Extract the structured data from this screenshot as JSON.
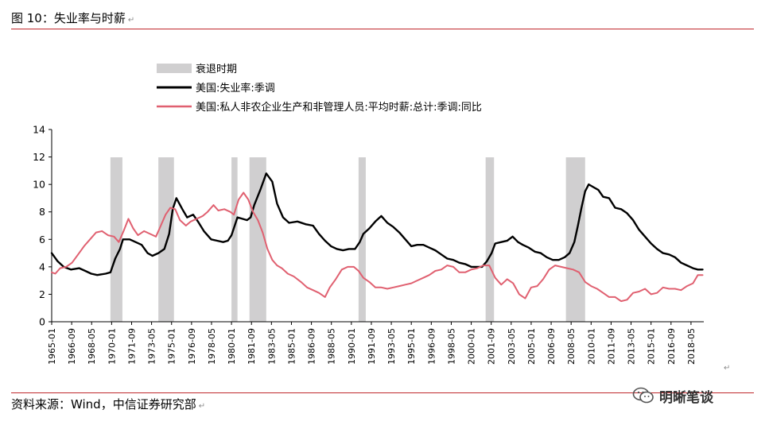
{
  "header": {
    "title": "图 10：失业率与时薪"
  },
  "footer": {
    "source": "资料来源：Wind，中信证券研究部"
  },
  "brand": {
    "text": "明晰笔谈",
    "icon": "wechat-icon"
  },
  "colors": {
    "unemployment": "#000000",
    "wage": "#e06070",
    "recession": "#d0cfd0",
    "rule": "#c0282d"
  },
  "chart_data": {
    "type": "line",
    "title": "",
    "xlabel": "",
    "ylabel": "",
    "ylim": [
      0,
      14
    ],
    "yticks": [
      0,
      2,
      4,
      6,
      8,
      10,
      12,
      14
    ],
    "xlim": [
      1965.0,
      2019.4
    ],
    "x_tick_labels": [
      "1965-01",
      "1966-09",
      "1968-05",
      "1970-01",
      "1971-09",
      "1973-05",
      "1975-01",
      "1976-09",
      "1978-05",
      "1980-01",
      "1981-09",
      "1983-05",
      "1985-01",
      "1986-09",
      "1988-05",
      "1990-01",
      "1991-09",
      "1993-05",
      "1995-01",
      "1996-09",
      "1998-05",
      "2000-01",
      "2001-09",
      "2003-05",
      "2005-01",
      "2006-09",
      "2008-05",
      "2010-01",
      "2011-09",
      "2013-05",
      "2015-01",
      "2016-09",
      "2018-05"
    ],
    "x_tick_values": [
      1965.0,
      1966.667,
      1968.333,
      1970.0,
      1971.667,
      1973.333,
      1975.0,
      1976.667,
      1978.333,
      1980.0,
      1981.667,
      1983.333,
      1985.0,
      1986.667,
      1988.333,
      1990.0,
      1991.667,
      1993.333,
      1995.0,
      1996.667,
      1998.333,
      2000.0,
      2001.667,
      2003.333,
      2005.0,
      2006.667,
      2008.333,
      2010.0,
      2011.667,
      2013.333,
      2015.0,
      2016.667,
      2018.333
    ],
    "grid": false,
    "legend_position": "top",
    "recession_label": "衰退时期",
    "recessions": [
      [
        1969.9,
        1970.9
      ],
      [
        1973.9,
        1975.2
      ],
      [
        1980.0,
        1980.5
      ],
      [
        1981.5,
        1982.9
      ],
      [
        1990.6,
        1991.2
      ],
      [
        2001.2,
        2001.9
      ],
      [
        2007.9,
        2009.5
      ]
    ],
    "series": [
      {
        "name": "美国:失业率:季调",
        "color": "#000000",
        "points": [
          [
            1965.0,
            5.0
          ],
          [
            1965.5,
            4.4
          ],
          [
            1966.0,
            4.0
          ],
          [
            1966.6,
            3.8
          ],
          [
            1967.3,
            3.9
          ],
          [
            1967.8,
            3.7
          ],
          [
            1968.3,
            3.5
          ],
          [
            1968.8,
            3.4
          ],
          [
            1969.5,
            3.5
          ],
          [
            1969.9,
            3.6
          ],
          [
            1970.3,
            4.6
          ],
          [
            1970.7,
            5.3
          ],
          [
            1970.95,
            6.0
          ],
          [
            1971.5,
            6.0
          ],
          [
            1972.0,
            5.8
          ],
          [
            1972.5,
            5.6
          ],
          [
            1973.0,
            5.0
          ],
          [
            1973.4,
            4.8
          ],
          [
            1973.9,
            5.0
          ],
          [
            1974.4,
            5.3
          ],
          [
            1974.8,
            6.4
          ],
          [
            1975.1,
            8.2
          ],
          [
            1975.4,
            9.0
          ],
          [
            1975.9,
            8.2
          ],
          [
            1976.3,
            7.6
          ],
          [
            1976.8,
            7.8
          ],
          [
            1977.2,
            7.3
          ],
          [
            1977.7,
            6.6
          ],
          [
            1978.3,
            6.0
          ],
          [
            1978.8,
            5.9
          ],
          [
            1979.3,
            5.8
          ],
          [
            1979.7,
            5.9
          ],
          [
            1980.0,
            6.3
          ],
          [
            1980.5,
            7.6
          ],
          [
            1980.9,
            7.5
          ],
          [
            1981.3,
            7.4
          ],
          [
            1981.6,
            7.6
          ],
          [
            1981.9,
            8.5
          ],
          [
            1982.4,
            9.6
          ],
          [
            1982.9,
            10.8
          ],
          [
            1983.4,
            10.2
          ],
          [
            1983.8,
            8.6
          ],
          [
            1984.3,
            7.6
          ],
          [
            1984.8,
            7.2
          ],
          [
            1985.5,
            7.3
          ],
          [
            1986.2,
            7.1
          ],
          [
            1986.8,
            7.0
          ],
          [
            1987.3,
            6.4
          ],
          [
            1987.8,
            5.9
          ],
          [
            1988.3,
            5.5
          ],
          [
            1988.8,
            5.3
          ],
          [
            1989.3,
            5.2
          ],
          [
            1989.8,
            5.3
          ],
          [
            1990.3,
            5.3
          ],
          [
            1990.7,
            5.8
          ],
          [
            1991.0,
            6.4
          ],
          [
            1991.5,
            6.8
          ],
          [
            1992.0,
            7.3
          ],
          [
            1992.5,
            7.7
          ],
          [
            1993.0,
            7.2
          ],
          [
            1993.5,
            6.9
          ],
          [
            1994.0,
            6.5
          ],
          [
            1994.5,
            6.0
          ],
          [
            1995.0,
            5.5
          ],
          [
            1995.5,
            5.6
          ],
          [
            1996.0,
            5.6
          ],
          [
            1996.5,
            5.4
          ],
          [
            1997.0,
            5.2
          ],
          [
            1997.5,
            4.9
          ],
          [
            1998.0,
            4.6
          ],
          [
            1998.5,
            4.5
          ],
          [
            1999.0,
            4.3
          ],
          [
            1999.5,
            4.2
          ],
          [
            2000.0,
            4.0
          ],
          [
            2000.5,
            4.0
          ],
          [
            2000.9,
            4.0
          ],
          [
            2001.3,
            4.4
          ],
          [
            2001.7,
            5.0
          ],
          [
            2002.0,
            5.7
          ],
          [
            2002.5,
            5.8
          ],
          [
            2003.0,
            5.9
          ],
          [
            2003.45,
            6.2
          ],
          [
            2003.9,
            5.8
          ],
          [
            2004.3,
            5.6
          ],
          [
            2004.8,
            5.4
          ],
          [
            2005.3,
            5.1
          ],
          [
            2005.8,
            5.0
          ],
          [
            2006.3,
            4.7
          ],
          [
            2006.8,
            4.5
          ],
          [
            2007.3,
            4.5
          ],
          [
            2007.8,
            4.7
          ],
          [
            2008.2,
            5.0
          ],
          [
            2008.6,
            5.8
          ],
          [
            2008.9,
            7.0
          ],
          [
            2009.2,
            8.3
          ],
          [
            2009.5,
            9.5
          ],
          [
            2009.8,
            10.0
          ],
          [
            2010.2,
            9.8
          ],
          [
            2010.6,
            9.6
          ],
          [
            2011.0,
            9.1
          ],
          [
            2011.5,
            9.0
          ],
          [
            2012.0,
            8.3
          ],
          [
            2012.5,
            8.2
          ],
          [
            2013.0,
            7.9
          ],
          [
            2013.5,
            7.4
          ],
          [
            2014.0,
            6.7
          ],
          [
            2014.5,
            6.2
          ],
          [
            2015.0,
            5.7
          ],
          [
            2015.5,
            5.3
          ],
          [
            2016.0,
            5.0
          ],
          [
            2016.5,
            4.9
          ],
          [
            2017.0,
            4.7
          ],
          [
            2017.5,
            4.3
          ],
          [
            2018.0,
            4.1
          ],
          [
            2018.5,
            3.9
          ],
          [
            2018.9,
            3.8
          ],
          [
            2019.3,
            3.8
          ]
        ]
      },
      {
        "name": "美国:私人非农企业生产和非管理人员:平均时薪:总计:季调:同比",
        "color": "#e06070",
        "points": [
          [
            1965.0,
            3.6
          ],
          [
            1965.3,
            3.5
          ],
          [
            1965.7,
            3.9
          ],
          [
            1966.2,
            4.0
          ],
          [
            1966.7,
            4.3
          ],
          [
            1967.2,
            4.9
          ],
          [
            1967.7,
            5.5
          ],
          [
            1968.2,
            6.0
          ],
          [
            1968.7,
            6.5
          ],
          [
            1969.2,
            6.6
          ],
          [
            1969.7,
            6.3
          ],
          [
            1970.2,
            6.2
          ],
          [
            1970.6,
            5.8
          ],
          [
            1971.0,
            6.6
          ],
          [
            1971.4,
            7.5
          ],
          [
            1971.8,
            6.8
          ],
          [
            1972.2,
            6.3
          ],
          [
            1972.7,
            6.6
          ],
          [
            1973.2,
            6.4
          ],
          [
            1973.7,
            6.2
          ],
          [
            1974.0,
            6.8
          ],
          [
            1974.5,
            7.8
          ],
          [
            1974.9,
            8.3
          ],
          [
            1975.3,
            8.2
          ],
          [
            1975.7,
            7.4
          ],
          [
            1976.2,
            7.0
          ],
          [
            1976.6,
            7.3
          ],
          [
            1977.1,
            7.5
          ],
          [
            1977.6,
            7.7
          ],
          [
            1978.0,
            8.0
          ],
          [
            1978.5,
            8.5
          ],
          [
            1978.9,
            8.1
          ],
          [
            1979.4,
            8.2
          ],
          [
            1979.9,
            8.0
          ],
          [
            1980.2,
            7.8
          ],
          [
            1980.6,
            8.9
          ],
          [
            1981.0,
            9.4
          ],
          [
            1981.4,
            8.9
          ],
          [
            1981.8,
            8.0
          ],
          [
            1982.2,
            7.4
          ],
          [
            1982.6,
            6.5
          ],
          [
            1983.0,
            5.3
          ],
          [
            1983.4,
            4.5
          ],
          [
            1983.8,
            4.1
          ],
          [
            1984.2,
            3.9
          ],
          [
            1984.7,
            3.5
          ],
          [
            1985.2,
            3.3
          ],
          [
            1985.8,
            2.9
          ],
          [
            1986.3,
            2.5
          ],
          [
            1986.8,
            2.3
          ],
          [
            1987.3,
            2.1
          ],
          [
            1987.8,
            1.8
          ],
          [
            1988.2,
            2.5
          ],
          [
            1988.7,
            3.1
          ],
          [
            1989.2,
            3.8
          ],
          [
            1989.7,
            4.0
          ],
          [
            1990.2,
            4.0
          ],
          [
            1990.6,
            3.7
          ],
          [
            1991.0,
            3.2
          ],
          [
            1991.5,
            2.9
          ],
          [
            1992.0,
            2.5
          ],
          [
            1992.5,
            2.5
          ],
          [
            1993.0,
            2.4
          ],
          [
            1993.5,
            2.5
          ],
          [
            1994.0,
            2.6
          ],
          [
            1994.5,
            2.7
          ],
          [
            1995.0,
            2.8
          ],
          [
            1995.5,
            3.0
          ],
          [
            1996.0,
            3.2
          ],
          [
            1996.5,
            3.4
          ],
          [
            1997.0,
            3.7
          ],
          [
            1997.5,
            3.8
          ],
          [
            1998.0,
            4.1
          ],
          [
            1998.5,
            4.0
          ],
          [
            1999.0,
            3.6
          ],
          [
            1999.5,
            3.6
          ],
          [
            2000.0,
            3.8
          ],
          [
            2000.5,
            3.9
          ],
          [
            2001.0,
            4.1
          ],
          [
            2001.5,
            4.1
          ],
          [
            2002.0,
            3.2
          ],
          [
            2002.5,
            2.7
          ],
          [
            2003.0,
            3.1
          ],
          [
            2003.5,
            2.8
          ],
          [
            2004.0,
            2.0
          ],
          [
            2004.5,
            1.7
          ],
          [
            2005.0,
            2.5
          ],
          [
            2005.5,
            2.6
          ],
          [
            2006.0,
            3.1
          ],
          [
            2006.5,
            3.8
          ],
          [
            2007.0,
            4.1
          ],
          [
            2007.5,
            4.0
          ],
          [
            2008.0,
            3.9
          ],
          [
            2008.5,
            3.8
          ],
          [
            2009.0,
            3.6
          ],
          [
            2009.5,
            2.9
          ],
          [
            2010.0,
            2.6
          ],
          [
            2010.5,
            2.4
          ],
          [
            2011.0,
            2.1
          ],
          [
            2011.5,
            1.8
          ],
          [
            2012.0,
            1.8
          ],
          [
            2012.5,
            1.5
          ],
          [
            2013.0,
            1.6
          ],
          [
            2013.5,
            2.1
          ],
          [
            2014.0,
            2.2
          ],
          [
            2014.5,
            2.4
          ],
          [
            2015.0,
            2.0
          ],
          [
            2015.5,
            2.1
          ],
          [
            2016.0,
            2.5
          ],
          [
            2016.5,
            2.4
          ],
          [
            2017.0,
            2.4
          ],
          [
            2017.5,
            2.3
          ],
          [
            2018.0,
            2.6
          ],
          [
            2018.5,
            2.8
          ],
          [
            2018.9,
            3.4
          ],
          [
            2019.3,
            3.4
          ]
        ]
      }
    ]
  }
}
